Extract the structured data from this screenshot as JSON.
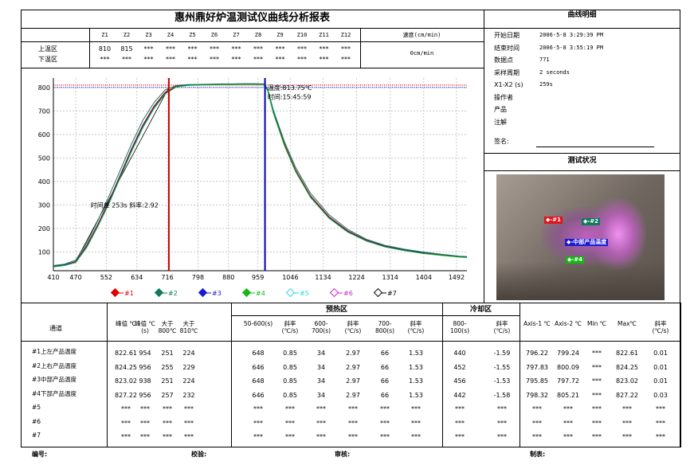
{
  "report_title": "惠州鼎好炉温测试仪曲线分析报表",
  "zones": {
    "names": [
      "Z1",
      "Z2",
      "Z3",
      "Z4",
      "Z5",
      "Z6",
      "Z7",
      "Z8",
      "Z9",
      "Z10",
      "Z11",
      "Z12"
    ],
    "upper_label": "上温区",
    "lower_label": "下温区",
    "upper": [
      "810",
      "815",
      "***",
      "***",
      "***",
      "***",
      "***",
      "***",
      "***",
      "***",
      "***",
      "***"
    ],
    "lower": [
      "***",
      "***",
      "***",
      "***",
      "***",
      "***",
      "***",
      "***",
      "***",
      "***",
      "***",
      "***"
    ],
    "speed_label": "速度(cm/min)",
    "speed_value": "0cm/min"
  },
  "details": {
    "title": "曲线明细",
    "rows": [
      {
        "label": "开始日期",
        "value": "2006-5-8 3:29:39 PM"
      },
      {
        "label": "结束时间",
        "value": "2006-5-8 3:55:19 PM"
      },
      {
        "label": "数据点",
        "value": "771"
      },
      {
        "label": "采样周期",
        "value": "2 seconds"
      },
      {
        "label": "X1-X2 (s)",
        "value": "259s"
      },
      {
        "label": "操作者",
        "value": ""
      },
      {
        "label": "产品",
        "value": ""
      },
      {
        "label": "注解",
        "value": ""
      }
    ],
    "sign_label": "签名:"
  },
  "status": {
    "title": "测试状况",
    "tags": [
      "◆-#1",
      "◆-#2",
      "◆-中部产品温度",
      "◆-#4"
    ],
    "colors": [
      "#e0121b",
      "#0f7a5c",
      "#1a1ad6",
      "#14b814"
    ]
  },
  "chart_data": {
    "type": "line",
    "x_ticks": [
      "410",
      "470",
      "552",
      "634",
      "716",
      "798",
      "880",
      "959",
      "1046",
      "1134",
      "1224",
      "1314",
      "1404",
      "1492"
    ],
    "y_ticks": [
      "100",
      "200",
      "300",
      "400",
      "500",
      "600",
      "700",
      "800"
    ],
    "xlim": [
      410,
      1520
    ],
    "ylim": [
      20,
      840
    ],
    "reference_lines": [
      {
        "value": 810,
        "color": "#e00000"
      },
      {
        "value": 800,
        "color": "#1010c0"
      }
    ],
    "markers": [
      {
        "x": 720,
        "color": "#d00000"
      },
      {
        "x": 978,
        "color": "#0000b0"
      }
    ],
    "annotations": [
      {
        "text": "时间差 253s 斜率:2.92",
        "x": 510,
        "y": 290
      },
      {
        "text": "温度:813.75℃",
        "x": 985,
        "y": 790
      },
      {
        "text": "时间:15:45:59",
        "x": 985,
        "y": 750
      }
    ],
    "series": [
      {
        "name": "#1",
        "color": "#e00000",
        "x": [
          410,
          440,
          470,
          500,
          530,
          560,
          590,
          620,
          650,
          680,
          710,
          740,
          770,
          800,
          830,
          860,
          890,
          920,
          950,
          975,
          985,
          1000,
          1030,
          1060,
          1100,
          1150,
          1200,
          1250,
          1300,
          1350,
          1400,
          1450,
          1500,
          1520
        ],
        "y": [
          40,
          45,
          60,
          130,
          220,
          320,
          430,
          540,
          640,
          720,
          780,
          805,
          810,
          812,
          813,
          814,
          814,
          815,
          815,
          814,
          790,
          700,
          560,
          450,
          340,
          250,
          190,
          150,
          125,
          110,
          98,
          88,
          80,
          78
        ]
      },
      {
        "name": "#2",
        "color": "#0f7a5c",
        "x": [
          410,
          440,
          470,
          500,
          530,
          560,
          590,
          620,
          650,
          680,
          710,
          740,
          770,
          800,
          830,
          860,
          890,
          920,
          950,
          975,
          985,
          1000,
          1030,
          1060,
          1100,
          1150,
          1200,
          1250,
          1300,
          1350,
          1400,
          1450,
          1500,
          1520
        ],
        "y": [
          42,
          48,
          65,
          140,
          235,
          340,
          450,
          560,
          660,
          735,
          790,
          808,
          812,
          813,
          814,
          815,
          815,
          816,
          816,
          815,
          795,
          705,
          570,
          460,
          350,
          258,
          196,
          154,
          128,
          112,
          100,
          90,
          82,
          80
        ]
      },
      {
        "name": "#3",
        "color": "#1a1ad6",
        "x": [
          410,
          440,
          470,
          500,
          530,
          560,
          590,
          620,
          650,
          680,
          710,
          740,
          770,
          800,
          830,
          860,
          890,
          920,
          950,
          975,
          985,
          1000,
          1030,
          1060,
          1100,
          1150,
          1200,
          1250,
          1300,
          1350,
          1400,
          1450,
          1500,
          1520
        ],
        "y": [
          38,
          44,
          58,
          125,
          215,
          315,
          425,
          535,
          635,
          715,
          775,
          803,
          809,
          811,
          812,
          813,
          813,
          814,
          814,
          813,
          788,
          695,
          555,
          445,
          335,
          246,
          187,
          148,
          123,
          108,
          96,
          86,
          79,
          77
        ]
      },
      {
        "name": "#4",
        "color": "#14b814",
        "x": [
          410,
          440,
          470,
          500,
          530,
          560,
          590,
          620,
          650,
          680,
          710,
          740,
          770,
          800,
          830,
          860,
          890,
          920,
          950,
          975,
          985,
          1000,
          1030,
          1060,
          1100,
          1150,
          1200,
          1250,
          1300,
          1350,
          1400,
          1450,
          1500,
          1520
        ],
        "y": [
          36,
          42,
          55,
          120,
          210,
          308,
          418,
          528,
          628,
          710,
          772,
          802,
          808,
          810,
          811,
          812,
          812,
          813,
          813,
          812,
          786,
          692,
          552,
          442,
          332,
          243,
          184,
          146,
          121,
          106,
          94,
          85,
          78,
          76
        ]
      },
      {
        "name": "#5",
        "color": "#2fd6e0",
        "x": [],
        "y": []
      },
      {
        "name": "#6",
        "color": "#d020d0",
        "x": [],
        "y": []
      },
      {
        "name": "#7",
        "color": "#000000",
        "x": [],
        "y": []
      }
    ]
  },
  "table": {
    "channel_label": "通道",
    "group_preheat": "预热区",
    "group_cool": "冷却区",
    "headers": [
      "峰值 ℃",
      "峰值 ℃ (s)",
      "大于 800℃",
      "大于 810℃",
      "50-600(s)",
      "斜率 (℃/s)",
      "600-700(s)",
      "斜率 (℃/s)",
      "700-800(s)",
      "斜率 (℃/s)",
      "800-100(s)",
      "斜率 (℃/s)",
      "Axis-1 ℃",
      "Axis-2 ℃",
      "Min ℃",
      "Max℃",
      "斜率 (℃/s)"
    ],
    "rows": [
      {
        "name": "#1上左产品温度",
        "values": [
          "822.61",
          "954",
          "251",
          "224",
          "648",
          "0.85",
          "34",
          "2.97",
          "66",
          "1.53",
          "440",
          "-1.59",
          "796.22",
          "799.24",
          "***",
          "822.61",
          "0.01"
        ]
      },
      {
        "name": "#2上右产品温度",
        "values": [
          "824.25",
          "956",
          "255",
          "229",
          "646",
          "0.85",
          "34",
          "2.97",
          "66",
          "1.53",
          "452",
          "-1.55",
          "797.83",
          "800.09",
          "***",
          "824.25",
          "0.01"
        ]
      },
      {
        "name": "#3中部产品温度",
        "values": [
          "823.02",
          "938",
          "251",
          "224",
          "648",
          "0.85",
          "34",
          "2.97",
          "66",
          "1.53",
          "456",
          "-1.53",
          "795.85",
          "797.72",
          "***",
          "823.02",
          "0.01"
        ]
      },
      {
        "name": "#4下部产品温度",
        "values": [
          "827.22",
          "956",
          "257",
          "232",
          "646",
          "0.85",
          "34",
          "2.97",
          "66",
          "1.53",
          "442",
          "-1.58",
          "798.32",
          "805.21",
          "***",
          "827.22",
          "0.03"
        ]
      },
      {
        "name": "#5",
        "values": [
          "***",
          "***",
          "***",
          "***",
          "***",
          "***",
          "***",
          "***",
          "***",
          "***",
          "***",
          "***",
          "***",
          "***",
          "***",
          "***",
          "***"
        ]
      },
      {
        "name": "#6",
        "values": [
          "***",
          "***",
          "***",
          "***",
          "***",
          "***",
          "***",
          "***",
          "***",
          "***",
          "***",
          "***",
          "***",
          "***",
          "***",
          "***",
          "***"
        ]
      },
      {
        "name": "#7",
        "values": [
          "***",
          "***",
          "***",
          "***",
          "***",
          "***",
          "***",
          "***",
          "***",
          "***",
          "***",
          "***",
          "***",
          "***",
          "***",
          "***",
          "***"
        ]
      }
    ]
  },
  "footer": [
    "编号:",
    "校验:",
    "审核:",
    "制表:"
  ]
}
